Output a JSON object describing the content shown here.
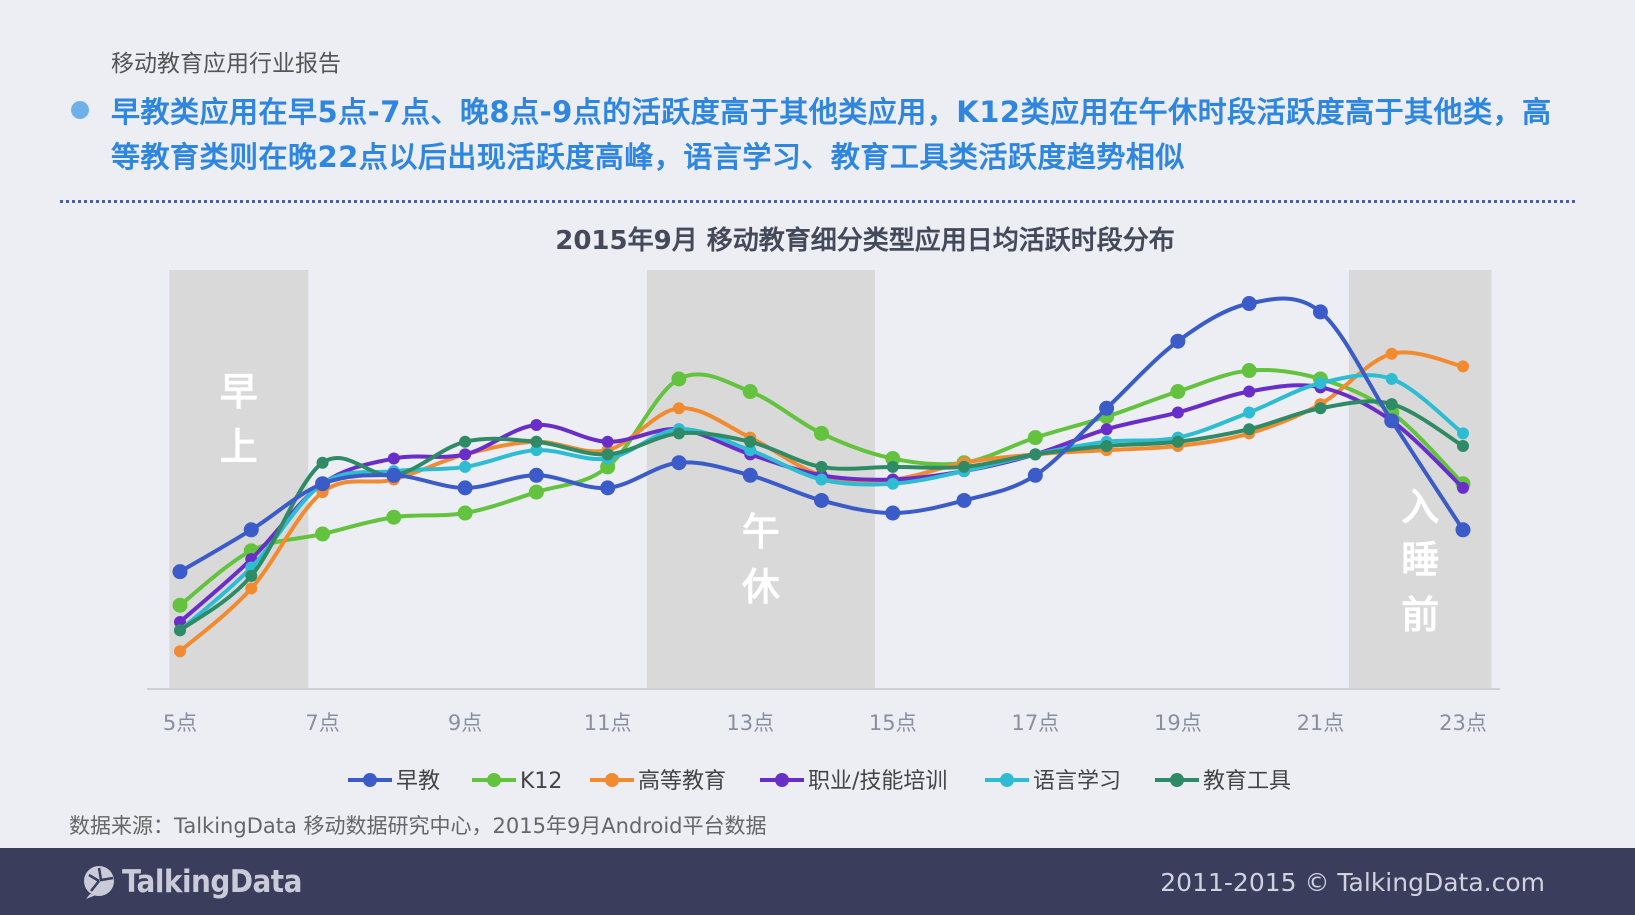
{
  "report_title": "移动教育应用行业报告",
  "headline": "早教类应用在早5点-7点、晚8点-9点的活跃度高于其他类应用，K12类应用在午休时段活跃度高于其他类，高等教育类则在晚22点以后出现活跃度高峰，语言学习、教育工具类活跃度趋势相似",
  "source_note": "数据来源：TalkingData 移动数据研究中心，2015年9月Android平台数据",
  "footer": {
    "logo_text": "TalkingData",
    "copyright": "2011-2015 © TalkingData.com"
  },
  "colors": {
    "accent": "#2e86de",
    "footer_bg": "#3a3d5c",
    "band": "#d9d9d9"
  },
  "chart_data": {
    "type": "line",
    "title": "2015年9月  移动教育细分类型应用日均活跃时段分布",
    "xlabel": "",
    "ylabel": "",
    "x": [
      5,
      6,
      7,
      8,
      9,
      10,
      11,
      12,
      13,
      14,
      15,
      16,
      17,
      18,
      19,
      20,
      21,
      22,
      23
    ],
    "x_tick_labels": [
      "5点",
      "7点",
      "9点",
      "11点",
      "13点",
      "15点",
      "17点",
      "19点",
      "21点",
      "23点"
    ],
    "x_tick_values": [
      5,
      7,
      9,
      11,
      13,
      15,
      17,
      19,
      21,
      23
    ],
    "ylim": [
      0,
      100
    ],
    "y_axis_visible": false,
    "grid": false,
    "legend_position": "bottom",
    "bands": [
      {
        "from": 4.85,
        "to": 6.8,
        "label_chars": [
          "早",
          "上"
        ]
      },
      {
        "from": 11.55,
        "to": 14.75,
        "label_chars": [
          "午",
          "休"
        ]
      },
      {
        "from": 21.4,
        "to": 23.4,
        "label_chars": [
          "入",
          "睡",
          "前"
        ]
      }
    ],
    "series": [
      {
        "name": "早教",
        "color": "#3a5bc8",
        "values": [
          28,
          38,
          49,
          51,
          48,
          51,
          48,
          54,
          51,
          45,
          42,
          45,
          51,
          67,
          83,
          92,
          90,
          64,
          38
        ]
      },
      {
        "name": "K12",
        "color": "#63c33e",
        "values": [
          20,
          33,
          37,
          41,
          42,
          47,
          53,
          74,
          71,
          61,
          55,
          54,
          60,
          65,
          71,
          76,
          74,
          66,
          49
        ]
      },
      {
        "name": "高等教育",
        "color": "#f28b30",
        "values": [
          9,
          24,
          47,
          50,
          56,
          59,
          57,
          67,
          60,
          51,
          50,
          54,
          56,
          57,
          58,
          61,
          68,
          80,
          77
        ]
      },
      {
        "name": "职业/技能培训",
        "color": "#6a2ec8",
        "values": [
          16,
          31,
          49,
          55,
          56,
          63,
          59,
          62,
          56,
          51,
          50,
          52,
          56,
          62,
          66,
          71,
          72,
          64,
          48
        ]
      },
      {
        "name": "语言学习",
        "color": "#2ebcd3",
        "values": [
          14,
          29,
          49,
          52,
          53,
          57,
          55,
          62,
          57,
          50,
          49,
          52,
          56,
          59,
          60,
          66,
          73,
          74,
          61
        ]
      },
      {
        "name": "教育工具",
        "color": "#2f8a66",
        "values": [
          14,
          27,
          54,
          51,
          59,
          59,
          56,
          61,
          59,
          53,
          53,
          53,
          56,
          58,
          59,
          62,
          67,
          68,
          58
        ]
      }
    ]
  }
}
